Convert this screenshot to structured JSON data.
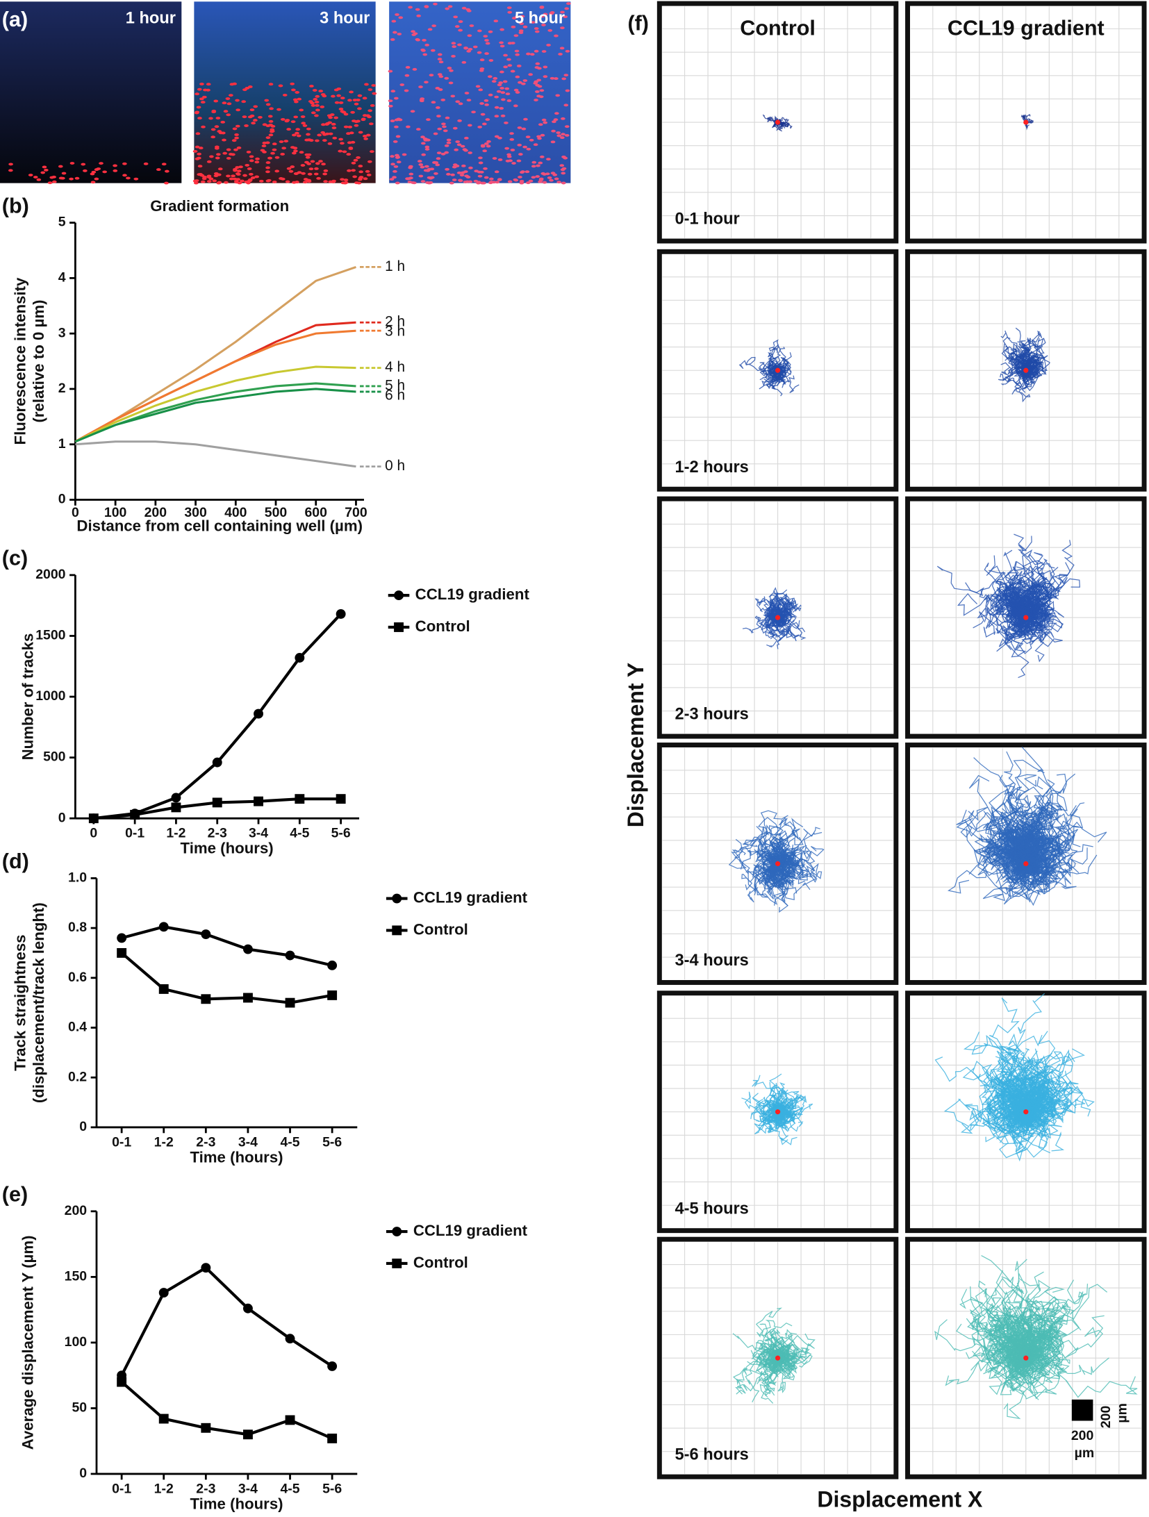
{
  "chart_data": [
    {
      "type": "line",
      "panel": "(b)",
      "title": "Gradient formation",
      "xlabel": "Distance from cell containing well (µm)",
      "ylabel": [
        "Fluorescence intensity",
        "(relative to 0 µm)"
      ],
      "x": [
        0,
        100,
        200,
        300,
        400,
        500,
        600,
        700
      ],
      "series": [
        {
          "name": "1 h",
          "color": "#d4a060",
          "values": [
            1.05,
            1.45,
            1.9,
            2.35,
            2.85,
            3.4,
            3.95,
            4.2
          ]
        },
        {
          "name": "2 h",
          "color": "#e02a1e",
          "values": [
            1.05,
            1.45,
            1.8,
            2.15,
            2.5,
            2.85,
            3.15,
            3.2
          ]
        },
        {
          "name": "3 h",
          "color": "#f07a30",
          "values": [
            1.05,
            1.45,
            1.8,
            2.15,
            2.5,
            2.8,
            3.0,
            3.05
          ]
        },
        {
          "name": "4 h",
          "color": "#c8c830",
          "values": [
            1.05,
            1.4,
            1.7,
            1.95,
            2.15,
            2.3,
            2.4,
            2.38
          ]
        },
        {
          "name": "5 h",
          "color": "#30a050",
          "values": [
            1.05,
            1.35,
            1.6,
            1.8,
            1.95,
            2.05,
            2.1,
            2.05
          ]
        },
        {
          "name": "6 h",
          "color": "#189048",
          "values": [
            1.05,
            1.35,
            1.55,
            1.75,
            1.85,
            1.95,
            2.0,
            1.95
          ]
        },
        {
          "name": "0 h",
          "color": "#a0a0a0",
          "values": [
            1.0,
            1.05,
            1.05,
            1.0,
            0.9,
            0.8,
            0.7,
            0.6
          ]
        }
      ],
      "xlim": [
        0,
        720
      ],
      "xticks": [
        0,
        100,
        200,
        300,
        400,
        500,
        600,
        700
      ],
      "ylim": [
        0,
        5
      ],
      "yticks": [
        0,
        1,
        2,
        3,
        4,
        5
      ]
    },
    {
      "type": "line",
      "panel": "(c)",
      "xlabel": "Time (hours)",
      "ylabel": [
        "Number of tracks"
      ],
      "categories": [
        "0",
        "0-1",
        "1-2",
        "2-3",
        "3-4",
        "4-5",
        "5-6"
      ],
      "series": [
        {
          "name": "CCL19 gradient",
          "color": "#000000",
          "marker": "circle",
          "values": [
            0,
            40,
            170,
            460,
            860,
            1320,
            1680
          ]
        },
        {
          "name": "Control",
          "color": "#000000",
          "marker": "square",
          "values": [
            0,
            30,
            90,
            130,
            140,
            160,
            160
          ]
        }
      ],
      "ylim": [
        0,
        2000
      ],
      "yticks": [
        0,
        500,
        1000,
        1500,
        2000
      ],
      "legend": "right"
    },
    {
      "type": "line",
      "panel": "(d)",
      "xlabel": "Time (hours)",
      "ylabel": [
        "Track straightness",
        "(displacement/track lenght)"
      ],
      "categories": [
        "0-1",
        "1-2",
        "2-3",
        "3-4",
        "4-5",
        "5-6"
      ],
      "series": [
        {
          "name": "CCL19 gradient",
          "color": "#000000",
          "marker": "circle",
          "values": [
            0.76,
            0.805,
            0.775,
            0.715,
            0.69,
            0.65
          ]
        },
        {
          "name": "Control",
          "color": "#000000",
          "marker": "square",
          "values": [
            0.7,
            0.555,
            0.515,
            0.52,
            0.5,
            0.53
          ]
        }
      ],
      "ylim": [
        0,
        1
      ],
      "yticks": [
        0,
        0.2,
        0.4,
        0.6,
        0.8,
        {
          "value": 1,
          "label": "1.0"
        }
      ],
      "legend": "right"
    },
    {
      "type": "line",
      "panel": "(e)",
      "xlabel": "Time (hours)",
      "ylabel": [
        "Average displacement Y (µm)"
      ],
      "categories": [
        "0-1",
        "1-2",
        "2-3",
        "3-4",
        "4-5",
        "5-6"
      ],
      "series": [
        {
          "name": "CCL19 gradient",
          "color": "#000000",
          "marker": "circle",
          "values": [
            75,
            138,
            157,
            126,
            103,
            82
          ]
        },
        {
          "name": "Control",
          "color": "#000000",
          "marker": "square",
          "values": [
            70,
            42,
            35,
            30,
            41,
            27
          ]
        }
      ],
      "ylim": [
        0,
        200
      ],
      "yticks": [
        0,
        50,
        100,
        150,
        200
      ],
      "legend": "right"
    }
  ],
  "panel_a": {
    "panel": "(a)",
    "images": [
      "1 hour",
      "3 hour",
      "5 hour"
    ]
  },
  "panel_f": {
    "panel": "(f)",
    "columns": [
      "Control",
      "CCL19 gradient"
    ],
    "rows": [
      "0-1 hour",
      "1-2 hours",
      "2-3 hours",
      "3-4 hours",
      "4-5 hours",
      "5-6 hours"
    ],
    "ylabel": "Displacement Y",
    "xlabel": "Displacement X",
    "scale_bar": {
      "number": "200",
      "unit": "µm"
    }
  }
}
